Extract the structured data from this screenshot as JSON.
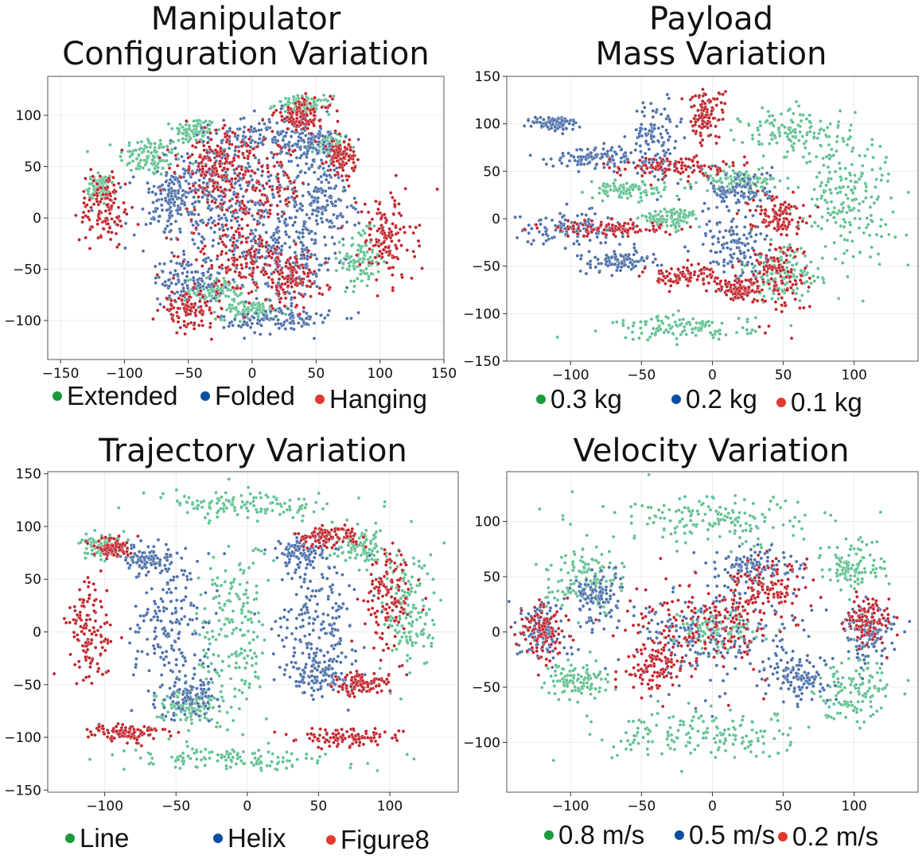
{
  "chart_data": [
    {
      "type": "scatter",
      "title_lines": [
        "Manipulator",
        "Configuration Variation"
      ],
      "xlim": [
        -160,
        150
      ],
      "ylim": [
        -138,
        138
      ],
      "x_ticks": [
        -150,
        -100,
        -50,
        0,
        50,
        100,
        150
      ],
      "x_tick_labels": [
        "−150",
        "−100",
        "−50",
        "0",
        "50",
        "100",
        "150"
      ],
      "y_ticks": [
        -100,
        -50,
        0,
        50,
        100
      ],
      "y_tick_labels": [
        "−100",
        "−50",
        "0",
        "50",
        "100"
      ],
      "grid": true,
      "legend": [
        {
          "label": "Extended",
          "color": "#1a9a3a"
        },
        {
          "label": "Folded",
          "color": "#0b4ea2"
        },
        {
          "label": "Hanging",
          "color": "#e03b2c"
        }
      ],
      "series": [
        {
          "name": "Extended",
          "color": "#5fc08f",
          "clusters": [
            [
              -80,
              60,
              22,
              18
            ],
            [
              -45,
              85,
              15,
              12
            ],
            [
              85,
              -40,
              14,
              25
            ],
            [
              -120,
              30,
              8,
              10
            ],
            [
              40,
              110,
              20,
              8
            ],
            [
              -30,
              -70,
              20,
              10
            ],
            [
              60,
              70,
              12,
              12
            ],
            [
              0,
              -90,
              25,
              8
            ]
          ]
        },
        {
          "name": "Folded",
          "color": "#4c6fa8",
          "clusters": [
            [
              -5,
              0,
              70,
              55
            ],
            [
              -30,
              40,
              30,
              40
            ],
            [
              30,
              -40,
              35,
              40
            ],
            [
              10,
              80,
              40,
              20
            ],
            [
              -50,
              -60,
              25,
              20
            ],
            [
              55,
              20,
              20,
              30
            ],
            [
              20,
              -100,
              40,
              12
            ],
            [
              -60,
              20,
              20,
              25
            ],
            [
              45,
              70,
              25,
              20
            ]
          ]
        },
        {
          "name": "Hanging",
          "color": "#c0232b",
          "clusters": [
            [
              -115,
              10,
              18,
              35
            ],
            [
              105,
              -20,
              20,
              40
            ],
            [
              -30,
              55,
              25,
              30
            ],
            [
              30,
              -60,
              25,
              25
            ],
            [
              40,
              100,
              20,
              15
            ],
            [
              -50,
              -90,
              20,
              15
            ],
            [
              0,
              30,
              40,
              40
            ],
            [
              -10,
              -40,
              35,
              30
            ],
            [
              70,
              60,
              10,
              15
            ]
          ]
        }
      ]
    },
    {
      "type": "scatter",
      "title_lines": [
        "Payload",
        "Mass Variation"
      ],
      "xlim": [
        -145,
        145
      ],
      "ylim": [
        -150,
        150
      ],
      "x_ticks": [
        -100,
        -50,
        0,
        50,
        100
      ],
      "x_tick_labels": [
        "−100",
        "−50",
        "0",
        "50",
        "100"
      ],
      "y_ticks": [
        -150,
        -100,
        -50,
        0,
        50,
        100,
        150
      ],
      "y_tick_labels": [
        "−150",
        "−100",
        "−50",
        "0",
        "50",
        "100",
        "150"
      ],
      "grid": true,
      "legend": [
        {
          "label": "0.3 kg",
          "color": "#1a9a3a"
        },
        {
          "label": "0.2 kg",
          "color": "#0b4ea2"
        },
        {
          "label": "0.1 kg",
          "color": "#e03b2c"
        }
      ],
      "series": [
        {
          "name": "0.3 kg",
          "color": "#5fc08f",
          "clusters": [
            [
              95,
              20,
              30,
              60
            ],
            [
              60,
              90,
              35,
              25
            ],
            [
              -20,
              -115,
              45,
              12
            ],
            [
              50,
              -60,
              25,
              25
            ],
            [
              -60,
              30,
              25,
              8
            ],
            [
              20,
              40,
              25,
              10
            ],
            [
              -30,
              0,
              20,
              10
            ]
          ]
        },
        {
          "name": "0.2 kg",
          "color": "#4c6fa8",
          "clusters": [
            [
              -100,
              -10,
              35,
              15
            ],
            [
              -80,
              65,
              30,
              10
            ],
            [
              -40,
              80,
              15,
              40
            ],
            [
              -65,
              -45,
              25,
              10
            ],
            [
              15,
              -30,
              20,
              35
            ],
            [
              20,
              30,
              20,
              20
            ],
            [
              -110,
              100,
              15,
              8
            ]
          ]
        },
        {
          "name": "0.1 kg",
          "color": "#c0232b",
          "clusters": [
            [
              -70,
              -10,
              40,
              8
            ],
            [
              -30,
              55,
              35,
              10
            ],
            [
              45,
              5,
              18,
              18
            ],
            [
              -20,
              -60,
              25,
              10
            ],
            [
              45,
              -60,
              20,
              35
            ],
            [
              -5,
              110,
              12,
              25
            ],
            [
              20,
              -75,
              15,
              10
            ]
          ]
        }
      ]
    },
    {
      "type": "scatter",
      "title_lines": [
        "Trajectory Variation"
      ],
      "xlim": [
        -140,
        148
      ],
      "ylim": [
        -152,
        152
      ],
      "x_ticks": [
        -100,
        -50,
        0,
        50,
        100
      ],
      "x_tick_labels": [
        "−100",
        "−50",
        "0",
        "50",
        "100"
      ],
      "y_ticks": [
        -150,
        -100,
        -50,
        0,
        50,
        100,
        150
      ],
      "y_tick_labels": [
        "−150",
        "−100",
        "−50",
        "0",
        "50",
        "100",
        "150"
      ],
      "grid": true,
      "legend": [
        {
          "label": "Line",
          "color": "#1a9a3a"
        },
        {
          "label": "Helix",
          "color": "#0b4ea2"
        },
        {
          "label": "Figure8",
          "color": "#e03b2c"
        }
      ],
      "series": [
        {
          "name": "Line",
          "color": "#5fc08f",
          "clusters": [
            [
              -10,
              0,
              22,
              80
            ],
            [
              115,
              20,
              18,
              55
            ],
            [
              0,
              120,
              55,
              12
            ],
            [
              -10,
              -120,
              70,
              10
            ],
            [
              -40,
              -70,
              20,
              15
            ],
            [
              80,
              80,
              15,
              15
            ],
            [
              -100,
              80,
              15,
              10
            ]
          ]
        },
        {
          "name": "Helix",
          "color": "#4c6fa8",
          "clusters": [
            [
              -55,
              10,
              25,
              60
            ],
            [
              50,
              15,
              25,
              60
            ],
            [
              -70,
              70,
              15,
              10
            ],
            [
              50,
              -40,
              20,
              20
            ],
            [
              -40,
              -60,
              20,
              20
            ],
            [
              40,
              75,
              20,
              15
            ]
          ]
        },
        {
          "name": "Figure8",
          "color": "#c0232b",
          "clusters": [
            [
              -110,
              0,
              15,
              45
            ],
            [
              100,
              30,
              15,
              45
            ],
            [
              70,
              -100,
              35,
              8
            ],
            [
              -85,
              -95,
              25,
              8
            ],
            [
              55,
              90,
              20,
              10
            ],
            [
              -95,
              80,
              12,
              8
            ],
            [
              80,
              -50,
              18,
              10
            ]
          ]
        }
      ]
    },
    {
      "type": "scatter",
      "title_lines": [
        "Velocity Variation"
      ],
      "xlim": [
        -145,
        145
      ],
      "ylim": [
        -145,
        145
      ],
      "x_ticks": [
        -100,
        -50,
        0,
        50,
        100
      ],
      "x_tick_labels": [
        "−100",
        "−50",
        "0",
        "50",
        "100"
      ],
      "y_ticks": [
        -100,
        -50,
        0,
        50,
        100
      ],
      "y_tick_labels": [
        "−100",
        "−50",
        "0",
        "50",
        "100"
      ],
      "grid": true,
      "legend": [
        {
          "label": "0.8 m/s",
          "color": "#1a9a3a"
        },
        {
          "label": "0.5 m/s",
          "color": "#0b4ea2"
        },
        {
          "label": "0.2 m/s",
          "color": "#e03b2c"
        }
      ],
      "series": [
        {
          "name": "0.8 m/s",
          "color": "#5fc08f",
          "clusters": [
            [
              0,
              100,
              70,
              20
            ],
            [
              0,
              -95,
              70,
              20
            ],
            [
              -90,
              50,
              25,
              25
            ],
            [
              100,
              -50,
              25,
              25
            ],
            [
              -95,
              -45,
              20,
              15
            ],
            [
              100,
              60,
              20,
              20
            ],
            [
              0,
              0,
              30,
              15
            ]
          ]
        },
        {
          "name": "0.5 m/s",
          "color": "#4c6fa8",
          "clusters": [
            [
              0,
              0,
              55,
              45
            ],
            [
              -120,
              0,
              15,
              25
            ],
            [
              110,
              0,
              18,
              25
            ],
            [
              -80,
              30,
              15,
              20
            ],
            [
              60,
              -40,
              20,
              20
            ],
            [
              30,
              60,
              25,
              15
            ]
          ]
        },
        {
          "name": "0.2 m/s",
          "color": "#c0232b",
          "clusters": [
            [
              0,
              10,
              50,
              35
            ],
            [
              -120,
              0,
              15,
              25
            ],
            [
              110,
              10,
              15,
              20
            ],
            [
              -40,
              -30,
              20,
              20
            ],
            [
              40,
              40,
              20,
              20
            ]
          ]
        }
      ]
    }
  ]
}
